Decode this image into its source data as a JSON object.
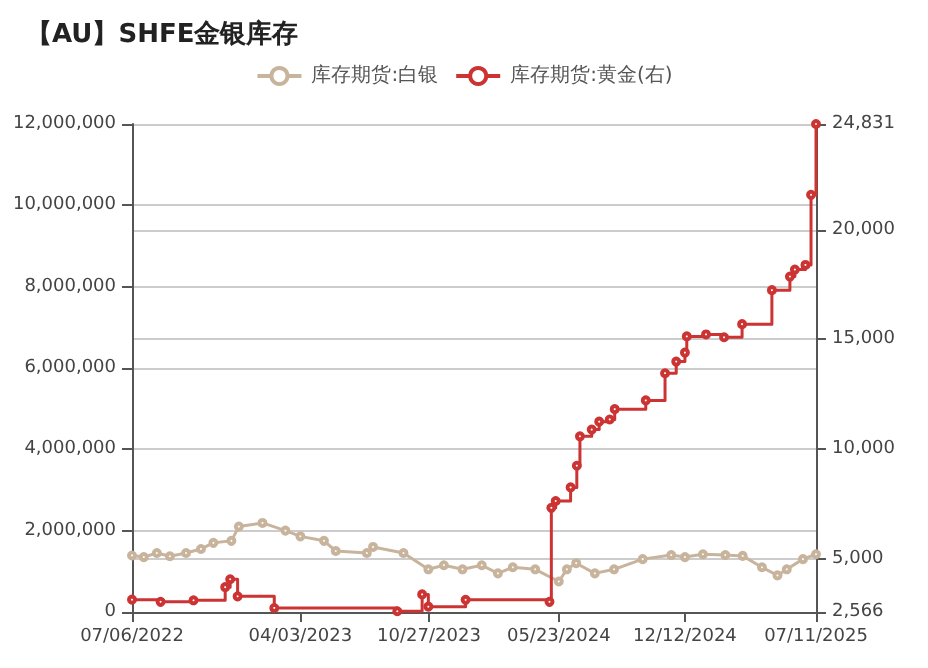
{
  "chart_data": {
    "type": "line",
    "title": "【AU】SHFE金银库存",
    "xlim": [
      "2022-07-06",
      "2025-07-11"
    ],
    "xticks": [
      {
        "value": "2022-07-06",
        "label": "07/06/2022"
      },
      {
        "value": "2023-04-03",
        "label": "04/03/2023"
      },
      {
        "value": "2023-10-27",
        "label": "10/27/2023"
      },
      {
        "value": "2024-05-23",
        "label": "05/23/2024"
      },
      {
        "value": "2024-12-12",
        "label": "12/12/2024"
      },
      {
        "value": "2025-07-11",
        "label": "07/11/2025"
      }
    ],
    "ylim": [
      0,
      12000000
    ],
    "yticks": [
      0,
      {
        "value": 2000000,
        "label": "2,000,000"
      },
      {
        "value": 4000000,
        "label": "4,000,000"
      },
      {
        "value": 6000000,
        "label": "6,000,000"
      },
      {
        "value": 8000000,
        "label": "8,000,000"
      },
      {
        "value": 10000000,
        "label": "10,000,000"
      },
      {
        "value": 12000000,
        "label": "12,000,000"
      }
    ],
    "y2lim": [
      2566,
      24831
    ],
    "y2ticks": [
      {
        "value": 2566,
        "label": "2,566"
      },
      {
        "value": 5000,
        "label": "5,000"
      },
      {
        "value": 10000,
        "label": "10,000"
      },
      {
        "value": 15000,
        "label": "15,000"
      },
      {
        "value": 20000,
        "label": "20,000"
      },
      {
        "value": 24831,
        "label": "24,831"
      }
    ],
    "grid": true,
    "legend": "top",
    "marker": "circle",
    "series": [
      {
        "name": "库存期货:白银",
        "color": "#c8b49c",
        "x": [
          "2022-07-06",
          "2022-07-25",
          "2022-08-15",
          "2022-09-05",
          "2022-10-01",
          "2022-10-25",
          "2022-11-14",
          "2022-12-13",
          "2022-12-25",
          "2023-02-01",
          "2023-03-10",
          "2023-04-03",
          "2023-05-11",
          "2023-05-30",
          "2023-07-19",
          "2023-07-29",
          "2023-09-16",
          "2023-10-26",
          "2023-11-20",
          "2023-12-20",
          "2024-01-20",
          "2024-02-15",
          "2024-03-10",
          "2024-04-15",
          "2024-05-23",
          "2024-06-05",
          "2024-06-20",
          "2024-07-20",
          "2024-08-20",
          "2024-10-05",
          "2024-11-20",
          "2024-12-12",
          "2025-01-10",
          "2025-02-15",
          "2025-03-15",
          "2025-04-15",
          "2025-05-10",
          "2025-05-25",
          "2025-06-20",
          "2025-07-11"
        ],
        "values": [
          1390000,
          1350000,
          1450000,
          1370000,
          1450000,
          1550000,
          1700000,
          1750000,
          2100000,
          2190000,
          2000000,
          1860000,
          1750000,
          1500000,
          1450000,
          1600000,
          1450000,
          1050000,
          1150000,
          1050000,
          1150000,
          950000,
          1100000,
          1050000,
          750000,
          1050000,
          1200000,
          950000,
          1050000,
          1300000,
          1400000,
          1350000,
          1420000,
          1400000,
          1380000,
          1100000,
          900000,
          1050000,
          1300000,
          1420000
        ]
      },
      {
        "name": "库存期货:黄金(右)",
        "type": "step",
        "axis": "y2",
        "color": "#cc3333",
        "x": [
          "2022-07-06",
          "2022-08-21",
          "2022-10-13",
          "2022-12-03",
          "2022-12-11",
          "2022-12-23",
          "2023-02-20",
          "2023-09-06",
          "2023-10-16",
          "2023-10-26",
          "2023-12-25",
          "2024-05-08",
          "2024-05-11",
          "2024-05-18",
          "2024-06-11",
          "2024-06-21",
          "2024-06-26",
          "2024-07-15",
          "2024-07-27",
          "2024-08-13",
          "2024-08-21",
          "2024-10-10",
          "2024-11-10",
          "2024-11-28",
          "2024-12-12",
          "2024-12-15",
          "2025-01-15",
          "2025-02-13",
          "2025-03-14",
          "2025-05-01",
          "2025-05-30",
          "2025-06-07",
          "2025-06-24",
          "2025-07-03",
          "2025-07-11"
        ],
        "values": [
          3130,
          3030,
          3100,
          3700,
          4060,
          3280,
          2750,
          2600,
          3370,
          2810,
          3120,
          3030,
          7320,
          7630,
          8250,
          9240,
          10580,
          10890,
          11250,
          11350,
          11820,
          12220,
          13460,
          13990,
          14400,
          15140,
          15230,
          15100,
          15700,
          17250,
          17870,
          18190,
          18400,
          21600,
          24831
        ]
      }
    ]
  }
}
